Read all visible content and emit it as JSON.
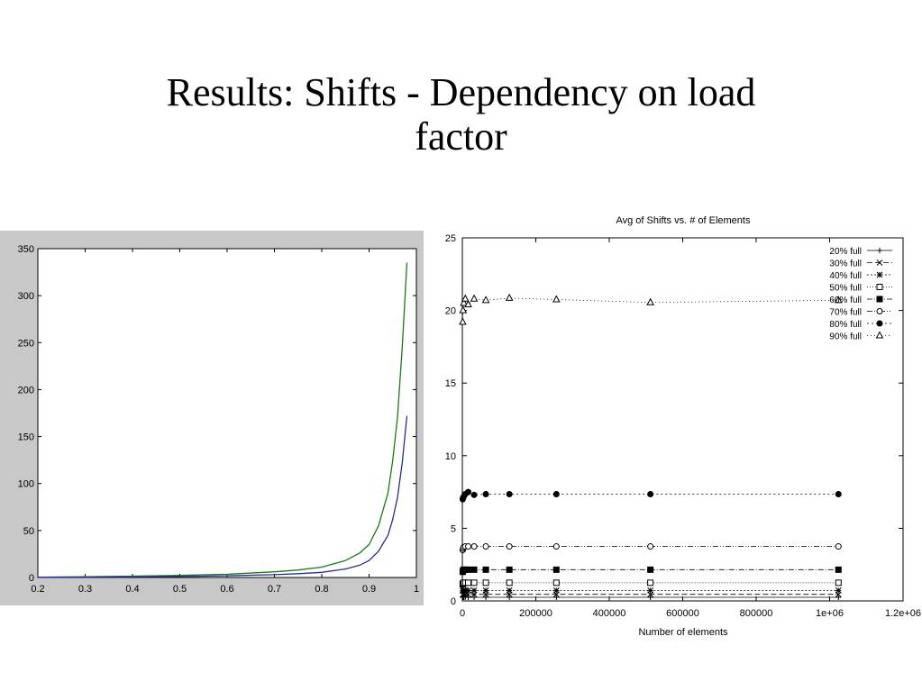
{
  "slide": {
    "title_line1": "Results: Shifts - Dependency on load",
    "title_line2": "factor"
  },
  "chart_data": [
    {
      "type": "line",
      "title": "",
      "xlabel": "",
      "ylabel": "",
      "xlim": [
        0.2,
        1
      ],
      "ylim": [
        0,
        350
      ],
      "xticks": [
        0.2,
        0.3,
        0.4,
        0.5,
        0.6,
        0.7,
        0.8,
        0.9,
        1
      ],
      "xtick_labels": [
        "0.2",
        "0.3",
        "0.4",
        "0.5",
        "0.6",
        "0.7",
        "0.8",
        "0.9",
        "1"
      ],
      "yticks": [
        0,
        50,
        100,
        150,
        200,
        250,
        300,
        350
      ],
      "ytick_labels": [
        "0",
        "50",
        "100",
        "150",
        "200",
        "250",
        "300",
        "350"
      ],
      "grid": false,
      "legend": "none",
      "background": "#c8c8c8",
      "series": [
        {
          "color": "#1a7a1a",
          "x": [
            0.2,
            0.3,
            0.4,
            0.5,
            0.6,
            0.7,
            0.75,
            0.8,
            0.85,
            0.88,
            0.9,
            0.92,
            0.94,
            0.95,
            0.96,
            0.97,
            0.98
          ],
          "y": [
            0.4,
            0.8,
            1.4,
            2.2,
            3.5,
            6,
            8,
            11,
            18,
            26,
            35,
            55,
            90,
            125,
            170,
            245,
            335
          ]
        },
        {
          "color": "#2a2a9a",
          "x": [
            0.2,
            0.3,
            0.4,
            0.5,
            0.6,
            0.7,
            0.75,
            0.8,
            0.85,
            0.88,
            0.9,
            0.92,
            0.94,
            0.95,
            0.96,
            0.97,
            0.98
          ],
          "y": [
            0.2,
            0.4,
            0.7,
            1.1,
            1.8,
            3,
            4,
            5.5,
            9,
            13,
            18,
            28,
            45,
            62,
            85,
            122,
            172
          ]
        }
      ]
    },
    {
      "type": "line",
      "title": "Avg of Shifts vs. # of Elements",
      "xlabel": "Number of elements",
      "ylabel": "",
      "xlim": [
        0,
        1200000
      ],
      "ylim": [
        0,
        25
      ],
      "xticks": [
        0,
        200000,
        400000,
        600000,
        800000,
        1000000,
        1200000
      ],
      "xtick_labels": [
        "0",
        "200000",
        "400000",
        "600000",
        "800000",
        "1e+06",
        "1.2e+06"
      ],
      "yticks": [
        0,
        5,
        10,
        15,
        20,
        25
      ],
      "ytick_labels": [
        "0",
        "5",
        "10",
        "15",
        "20",
        "25"
      ],
      "grid": false,
      "legend": "top-right",
      "x": [
        1000,
        2000,
        4000,
        8000,
        16000,
        32000,
        64000,
        128000,
        256000,
        512000,
        1024000
      ],
      "series": [
        {
          "name": "20% full",
          "marker": "plus",
          "dash": "",
          "values": [
            0.25,
            0.25,
            0.25,
            0.25,
            0.25,
            0.25,
            0.25,
            0.25,
            0.25,
            0.25,
            0.25
          ]
        },
        {
          "name": "30% full",
          "marker": "x",
          "dash": "6,3",
          "values": [
            0.45,
            0.45,
            0.45,
            0.45,
            0.45,
            0.45,
            0.45,
            0.45,
            0.45,
            0.45,
            0.45
          ]
        },
        {
          "name": "40% full",
          "marker": "star",
          "dash": "2,2",
          "values": [
            0.7,
            0.72,
            0.72,
            0.72,
            0.72,
            0.72,
            0.72,
            0.72,
            0.72,
            0.72,
            0.72
          ]
        },
        {
          "name": "50% full",
          "marker": "square-open",
          "dash": "1,2",
          "values": [
            1.15,
            1.2,
            1.25,
            1.25,
            1.25,
            1.25,
            1.25,
            1.25,
            1.25,
            1.25,
            1.25
          ]
        },
        {
          "name": "60% full",
          "marker": "square-filled",
          "dash": "6,2,1,2",
          "values": [
            2.0,
            2.1,
            2.15,
            2.15,
            2.15,
            2.15,
            2.15,
            2.15,
            2.15,
            2.15,
            2.15
          ]
        },
        {
          "name": "70% full",
          "marker": "circle-open",
          "dash": "6,2,1,2,1,2",
          "values": [
            3.5,
            3.6,
            3.7,
            3.75,
            3.75,
            3.75,
            3.75,
            3.75,
            3.75,
            3.75,
            3.75
          ]
        },
        {
          "name": "80% full",
          "marker": "circle-filled",
          "dash": "2,3",
          "values": [
            7.0,
            7.1,
            7.2,
            7.35,
            7.5,
            7.3,
            7.35,
            7.35,
            7.35,
            7.35,
            7.35
          ]
        },
        {
          "name": "90% full",
          "marker": "triangle-open",
          "dash": "1,3",
          "values": [
            19.2,
            20.0,
            20.5,
            20.8,
            20.4,
            20.8,
            20.7,
            20.85,
            20.75,
            20.55,
            20.7
          ]
        }
      ]
    }
  ]
}
